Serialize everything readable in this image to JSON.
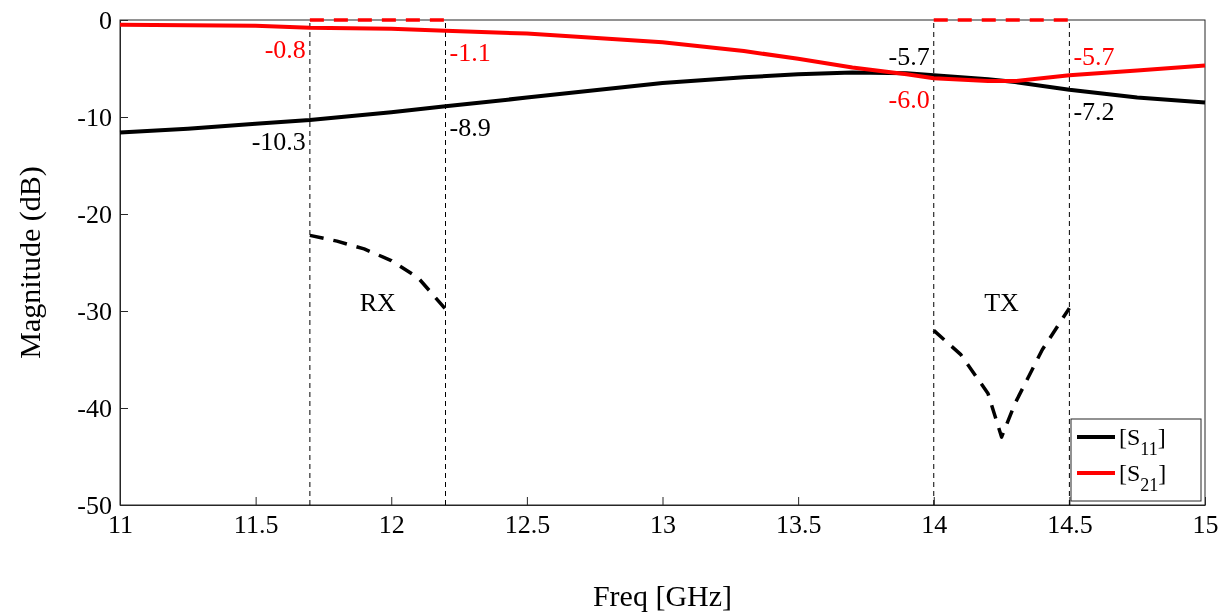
{
  "chart_data": {
    "type": "line",
    "xlabel": "Freq [GHz]",
    "ylabel": "Magnitude (dB)",
    "xlim": [
      11,
      15
    ],
    "xticks": [
      11,
      11.5,
      12,
      12.5,
      13,
      13.5,
      14,
      14.5,
      15
    ],
    "ylim": [
      -50,
      0
    ],
    "yticks": [
      -50,
      -40,
      -30,
      -20,
      -10,
      0
    ],
    "grid": false,
    "legend": "bottom right",
    "series": [
      {
        "name": "[S$_{11}$]",
        "color": "#000000",
        "line_style": "solid",
        "x": [
          11,
          11.25,
          11.5,
          11.7,
          12,
          12.2,
          12.5,
          13,
          13.3,
          13.5,
          13.7,
          13.9,
          14,
          14.2,
          14.3,
          14.5,
          14.75,
          15
        ],
        "values": [
          -11.6,
          -11.2,
          -10.7,
          -10.3,
          -9.5,
          -8.9,
          -8.0,
          -6.5,
          -5.9,
          -5.6,
          -5.4,
          -5.5,
          -5.7,
          -6.1,
          -6.4,
          -7.2,
          -8.0,
          -8.5
        ]
      },
      {
        "name": "[S$_{21}$]",
        "color": "#ff0000",
        "line_style": "solid",
        "x": [
          11,
          11.5,
          11.7,
          12,
          12.2,
          12.5,
          13,
          13.3,
          13.5,
          13.7,
          13.9,
          14,
          14.2,
          14.3,
          14.5,
          14.75,
          15
        ],
        "values": [
          -0.5,
          -0.6,
          -0.8,
          -0.9,
          -1.1,
          -1.4,
          -2.3,
          -3.2,
          -4.0,
          -4.9,
          -5.6,
          -6.0,
          -6.3,
          -6.3,
          -5.7,
          -5.2,
          -4.7
        ]
      },
      {
        "color": "#000000",
        "line_style": "dashed",
        "x": [
          11.7,
          11.8,
          11.9,
          12.0,
          12.1,
          12.2,
          13,
          14,
          14.1,
          14.2,
          14.25,
          14.3,
          14.4,
          14.5
        ],
        "values": [
          -22.2,
          -22.8,
          -23.6,
          -24.8,
          -26.6,
          -29.8,
          null,
          -32,
          -34.5,
          -38.5,
          -43,
          -39.5,
          -34,
          -29.7
        ]
      },
      {
        "color": "#ff0000",
        "line_style": "dashed",
        "x": [
          11.7,
          12.2,
          13,
          14,
          14.5
        ],
        "values": [
          0,
          0,
          null,
          0,
          0
        ]
      }
    ],
    "ref_lines": [
      {
        "axis": "x",
        "value": 11.7,
        "color": "#000000",
        "line_style": "dashed"
      },
      {
        "axis": "x",
        "value": 12.2,
        "color": "#000000",
        "line_style": "dashed"
      },
      {
        "axis": "x",
        "value": 14,
        "color": "#000000",
        "line_style": "dashed"
      },
      {
        "axis": "x",
        "value": 14.5,
        "color": "#000000",
        "line_style": "dashed"
      }
    ],
    "annotations": [
      {
        "text": "-0.8",
        "x": 11.7,
        "y": -0.8
      },
      {
        "text": "-1.1",
        "x": 12.2,
        "y": -1.1
      },
      {
        "text": "-6.0",
        "x": 14,
        "y": -6.0
      },
      {
        "text": "-5.7",
        "x": 14.5,
        "y": -5.7
      },
      {
        "text": "-10.3",
        "x": 11.7,
        "y": -10.3
      },
      {
        "text": "-8.9",
        "x": 12.2,
        "y": -8.9
      },
      {
        "text": "-5.7",
        "x": 14,
        "y": -5.7
      },
      {
        "text": "-7.2",
        "x": 14.5,
        "y": -7.2
      },
      "RX",
      "TX"
    ]
  }
}
